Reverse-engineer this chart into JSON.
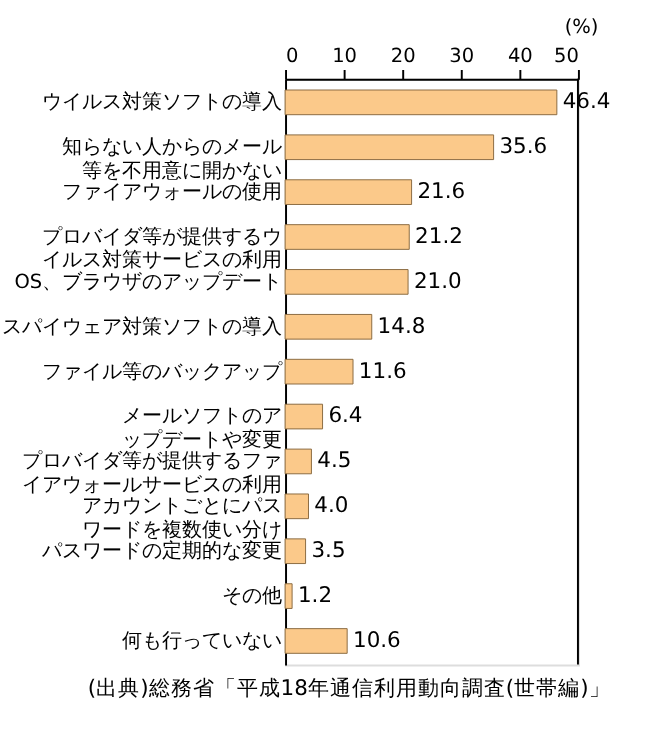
{
  "chart_data": {
    "type": "bar",
    "orientation": "horizontal",
    "xlabel": "(%)",
    "categories": [
      "ウイルス対策ソフトの導入",
      "知らない人からのメール等を不用意に開かない",
      "ファイアウォールの使用",
      "プロバイダ等が提供するウイルス対策サービスの利用",
      "OS、ブラウザのアップデート",
      "スパイウェア対策ソフトの導入",
      "ファイル等のバックアップ",
      "メールソフトのアップデートや変更",
      "プロバイダ等が提供するファイアウォールサービスの利用",
      "アカウントごとにパスワードを複数使い分け",
      "パスワードの定期的な変更",
      "その他",
      "何も行っていない"
    ],
    "values": [
      46.4,
      35.6,
      21.6,
      21.2,
      21.0,
      14.8,
      11.6,
      6.4,
      4.5,
      4.0,
      3.5,
      1.2,
      10.6
    ],
    "value_labels": [
      "46.4",
      "35.6",
      "21.6",
      "21.2",
      "21.0",
      "14.8",
      "11.6",
      "6.4",
      "4.5",
      "4.0",
      "3.5",
      "1.2",
      "10.6"
    ],
    "color": "#fbc98a",
    "xlim": [
      0,
      50
    ],
    "xticks": [
      0,
      10,
      20,
      30,
      40,
      50
    ],
    "grid": false,
    "annotations": [
      "(出典)総務省「平成18年通信利用動向調査(世帯編)」"
    ]
  }
}
